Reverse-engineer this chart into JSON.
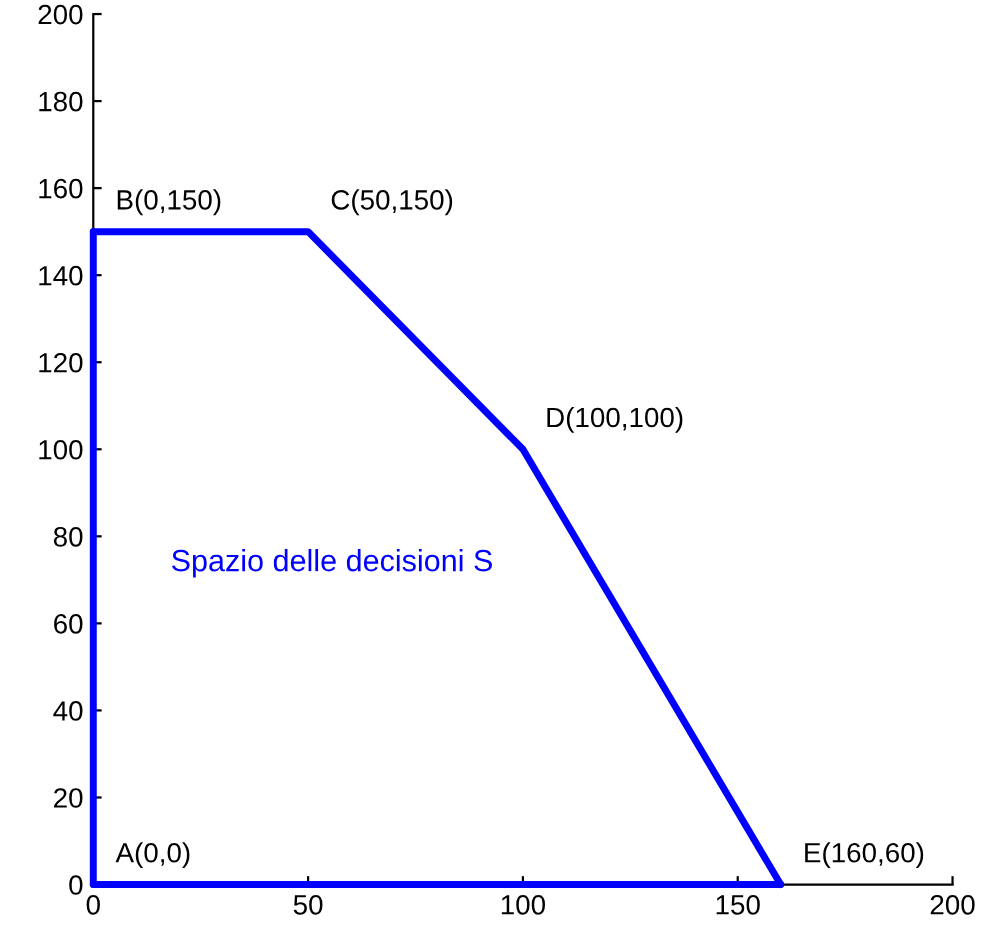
{
  "chart_data": {
    "type": "line",
    "series": [
      {
        "color": "#0000ff",
        "x": [
          0,
          0
        ],
        "values": [
          0,
          150
        ]
      },
      {
        "color": "#0000ff",
        "x": [
          0,
          50,
          100,
          160
        ],
        "values": [
          150,
          150,
          100,
          0
        ]
      },
      {
        "color": "#0000ff",
        "x": [
          0,
          160
        ],
        "values": [
          0,
          0
        ]
      }
    ],
    "xlim": [
      0,
      200
    ],
    "xticks": [
      0,
      50,
      100,
      150,
      200
    ],
    "ylim": [
      0,
      200
    ],
    "yticks": [
      0,
      20,
      40,
      60,
      80,
      100,
      120,
      140,
      160,
      180,
      200
    ],
    "grid": false,
    "legend": false,
    "marker": "none",
    "line_style": "solid",
    "annotations": [
      {
        "text": "A(0,0)",
        "x": 0,
        "y": 0
      },
      {
        "text": "B(0,150)",
        "x": 0,
        "y": 150
      },
      {
        "text": "C(50,150)",
        "x": 50,
        "y": 150
      },
      {
        "text": "D(100,100)",
        "x": 100,
        "y": 100
      },
      {
        "text": "E(160,60)",
        "x": 160,
        "y": 0
      },
      "Spazio delle decisioni S"
    ]
  }
}
